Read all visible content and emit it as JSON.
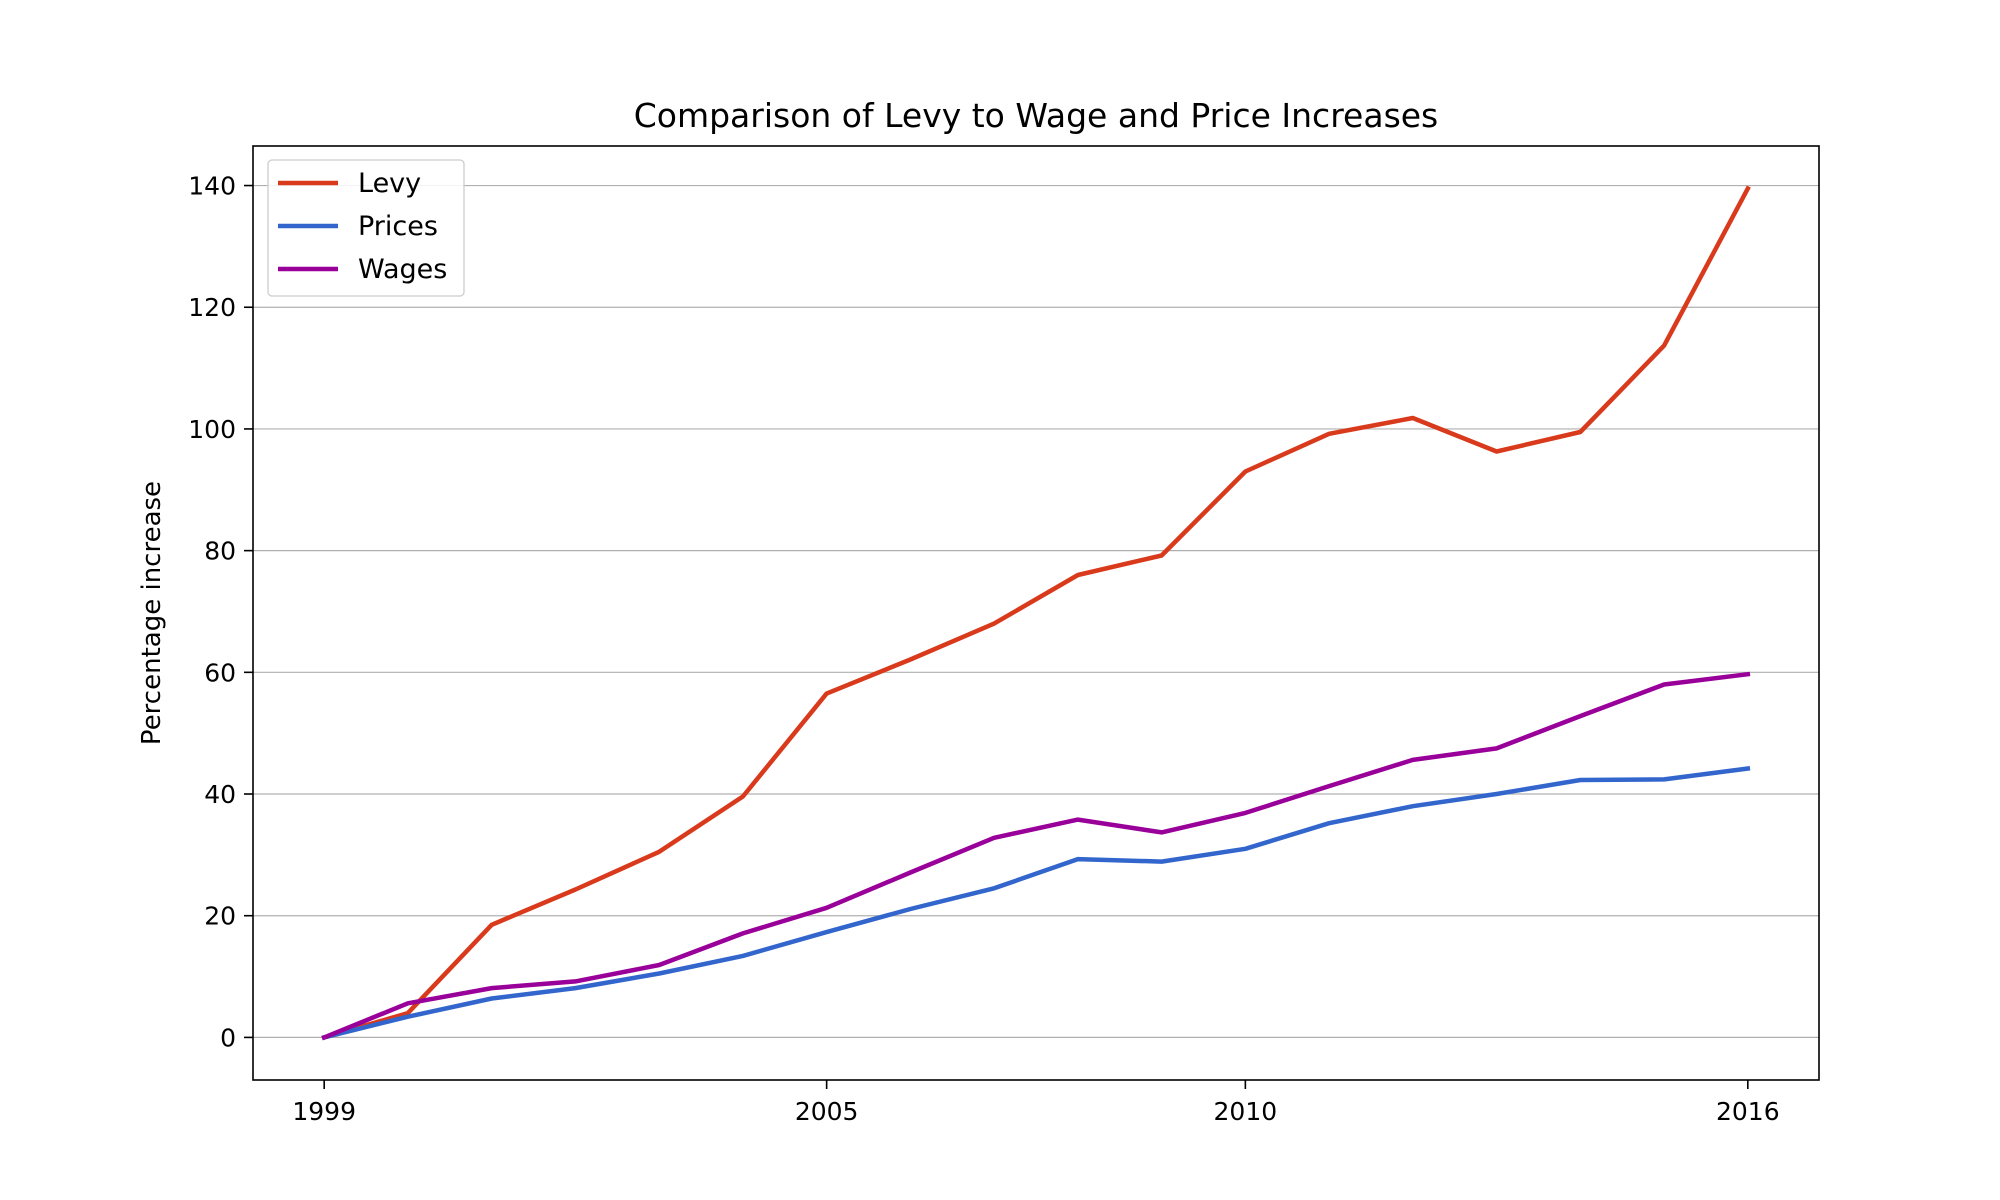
{
  "chart_data": {
    "type": "line",
    "title": "Comparison of Levy to Wage and Price Increases",
    "xlabel": "",
    "ylabel": "Percentage increase",
    "x": [
      1999,
      2000,
      2001,
      2002,
      2003,
      2004,
      2005,
      2006,
      2007,
      2008,
      2009,
      2010,
      2011,
      2012,
      2013,
      2014,
      2015,
      2016
    ],
    "xticks": [
      1999,
      2005,
      2010,
      2016
    ],
    "xtick_labels": [
      "1999",
      "2005",
      "2010",
      "2016"
    ],
    "xlim": [
      1998.15,
      2016.85
    ],
    "yticks": [
      0,
      20,
      40,
      60,
      80,
      100,
      120,
      140
    ],
    "ytick_labels": [
      "0",
      "20",
      "40",
      "60",
      "80",
      "100",
      "120",
      "140"
    ],
    "ylim": [
      -7,
      146.5
    ],
    "grid": "horizontal",
    "legend_position": "top-left",
    "series": [
      {
        "name": "Levy",
        "color": "#d93a1c",
        "values": [
          0,
          4,
          18.5,
          24.3,
          30.5,
          39.6,
          56.5,
          62.1,
          68,
          76,
          79.2,
          93,
          99.2,
          101.8,
          96.3,
          99.5,
          113.7,
          139.5
        ]
      },
      {
        "name": "Prices",
        "color": "#3366cc",
        "values": [
          0,
          3.4,
          6.4,
          8.1,
          10.5,
          13.4,
          17.3,
          21.1,
          24.5,
          29.3,
          28.9,
          31,
          35.2,
          38,
          40,
          42.3,
          42.4,
          44.2
        ]
      },
      {
        "name": "Wages",
        "color": "#990099",
        "values": [
          0,
          5.6,
          8.1,
          9.2,
          11.9,
          17.1,
          21.3,
          27.1,
          32.8,
          35.8,
          33.7,
          36.9,
          41.3,
          45.6,
          47.5,
          52.8,
          58,
          59.7
        ]
      }
    ]
  }
}
